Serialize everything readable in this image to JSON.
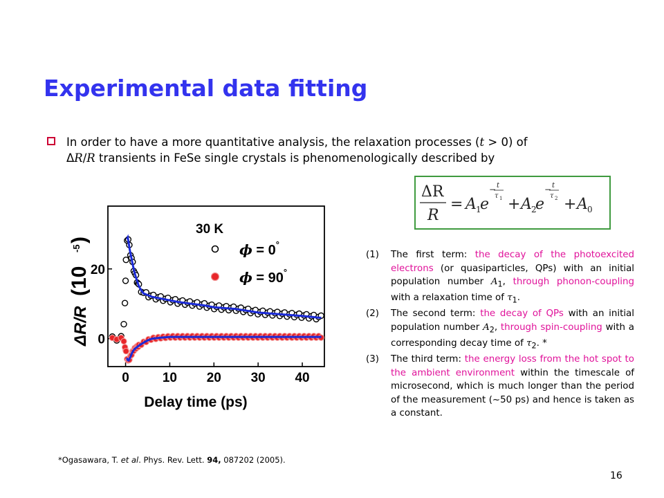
{
  "title": "Experimental data fitting",
  "bullet": {
    "line1_a": "In order to have a more quantitative analysis, the relaxation processes (",
    "line1_t": "t",
    "line1_b": " > 0) of",
    "line2_delta": "Δ",
    "line2_r1": "R",
    "line2_slash": "/",
    "line2_r2": "R",
    "line2_rest": " transients in FeSe single crystals is phenomenologically described by"
  },
  "equation": {
    "lhs_num": "ΔR",
    "lhs_den": "R",
    "a1": "A",
    "a1_sub": "1",
    "e": "e",
    "exp_minus": "−",
    "t": "t",
    "tau": "τ",
    "tau1_sub": "1",
    "plus": "+",
    "a2": "A",
    "a2_sub": "2",
    "tau2_sub": "2",
    "a0": "A",
    "a0_sub": "0",
    "eq": "="
  },
  "notes": [
    {
      "num": "(1)",
      "p1": "The first term: ",
      "h1": "the decay of the photoexcited electrons",
      "p2": " (or quasiparticles, QPs) with an initial population number ",
      "v": "A",
      "sub": "1",
      "p3": ", ",
      "h2": "through phonon-coupling",
      "p4": " with a relaxation time of ",
      "tau": "τ",
      "tausub": "1",
      "p5": "."
    },
    {
      "num": "(2)",
      "p1": "The second term: ",
      "h1": "the decay of QPs",
      "p2": " with an initial population number ",
      "v": "A",
      "sub": "2",
      "p3": ", ",
      "h2": "through spin-coupling",
      "p4": " with a corresponding decay time of ",
      "tau": "τ",
      "tausub": "2",
      "p5": ". *"
    },
    {
      "num": "(3)",
      "p1": "The third term: ",
      "h1": "the energy loss from the hot spot to the ambient environment",
      "p2": " within the timescale of microsecond, which is much longer than the period of the measurement (~50 ps) and hence is taken as a constant."
    }
  ],
  "footnote": {
    "a": "*Ogasawara, T. ",
    "etal": "et al",
    "b": ". Phys. Rev. Lett. ",
    "vol": "94,",
    "c": " 087202 (2005)."
  },
  "page_number": "16",
  "colors": {
    "title": "#3333ee",
    "highlight": "#e0129a",
    "bullet": "#cc0033",
    "box": "#3e9a3e",
    "fit": "#1a2ad8",
    "red_data": "#e8262a"
  },
  "chart_data": {
    "type": "scatter",
    "xlabel": "Delay time (ps)",
    "ylabel_main": "ΔR/R",
    "ylabel_unit": "(10",
    "ylabel_exp": "-5",
    "ylabel_close": ")",
    "xlim": [
      -4,
      45
    ],
    "ylim": [
      -8,
      38
    ],
    "x_ticks": [
      0,
      10,
      20,
      30,
      40
    ],
    "y_ticks": [
      0,
      20
    ],
    "annotation": "30 K",
    "legend": [
      {
        "symbol": "open-circle",
        "phi": "ϕ",
        "eq": " = 0",
        "deg": "°"
      },
      {
        "symbol": "filled-red-circle",
        "phi": "ϕ",
        "eq": " = 90",
        "deg": "°"
      }
    ],
    "series": [
      {
        "x": [
          -3,
          -2,
          -1,
          -0.5,
          -0.2,
          0,
          0.1,
          0.2,
          0.3,
          0.5,
          0.7,
          1,
          1.5,
          2,
          2.5,
          3,
          4,
          5,
          6,
          8,
          10,
          12,
          15,
          18,
          20,
          25,
          30,
          35,
          40,
          44
        ],
        "values": [
          0,
          0,
          0.5,
          3,
          8,
          16,
          22,
          26,
          28.5,
          29,
          27.5,
          25,
          22,
          19,
          17,
          15,
          13,
          12.5,
          12,
          11.5,
          11,
          10.5,
          10,
          9.5,
          9,
          8.5,
          7.5,
          7,
          6.5,
          6
        ]
      },
      {
        "x": [
          -3,
          -2,
          -1,
          -0.5,
          0,
          0.3,
          0.6,
          1,
          1.5,
          2,
          3,
          4,
          5,
          6,
          8,
          10,
          15,
          20,
          25,
          30,
          35,
          40,
          44
        ],
        "values": [
          0,
          0,
          0,
          -0.5,
          -3,
          -5.5,
          -6.5,
          -5.5,
          -4,
          -3,
          -2,
          -1.2,
          -0.5,
          0,
          0.3,
          0.5,
          0.5,
          0.5,
          0.5,
          0.5,
          0.5,
          0.5,
          0.5
        ]
      }
    ]
  }
}
